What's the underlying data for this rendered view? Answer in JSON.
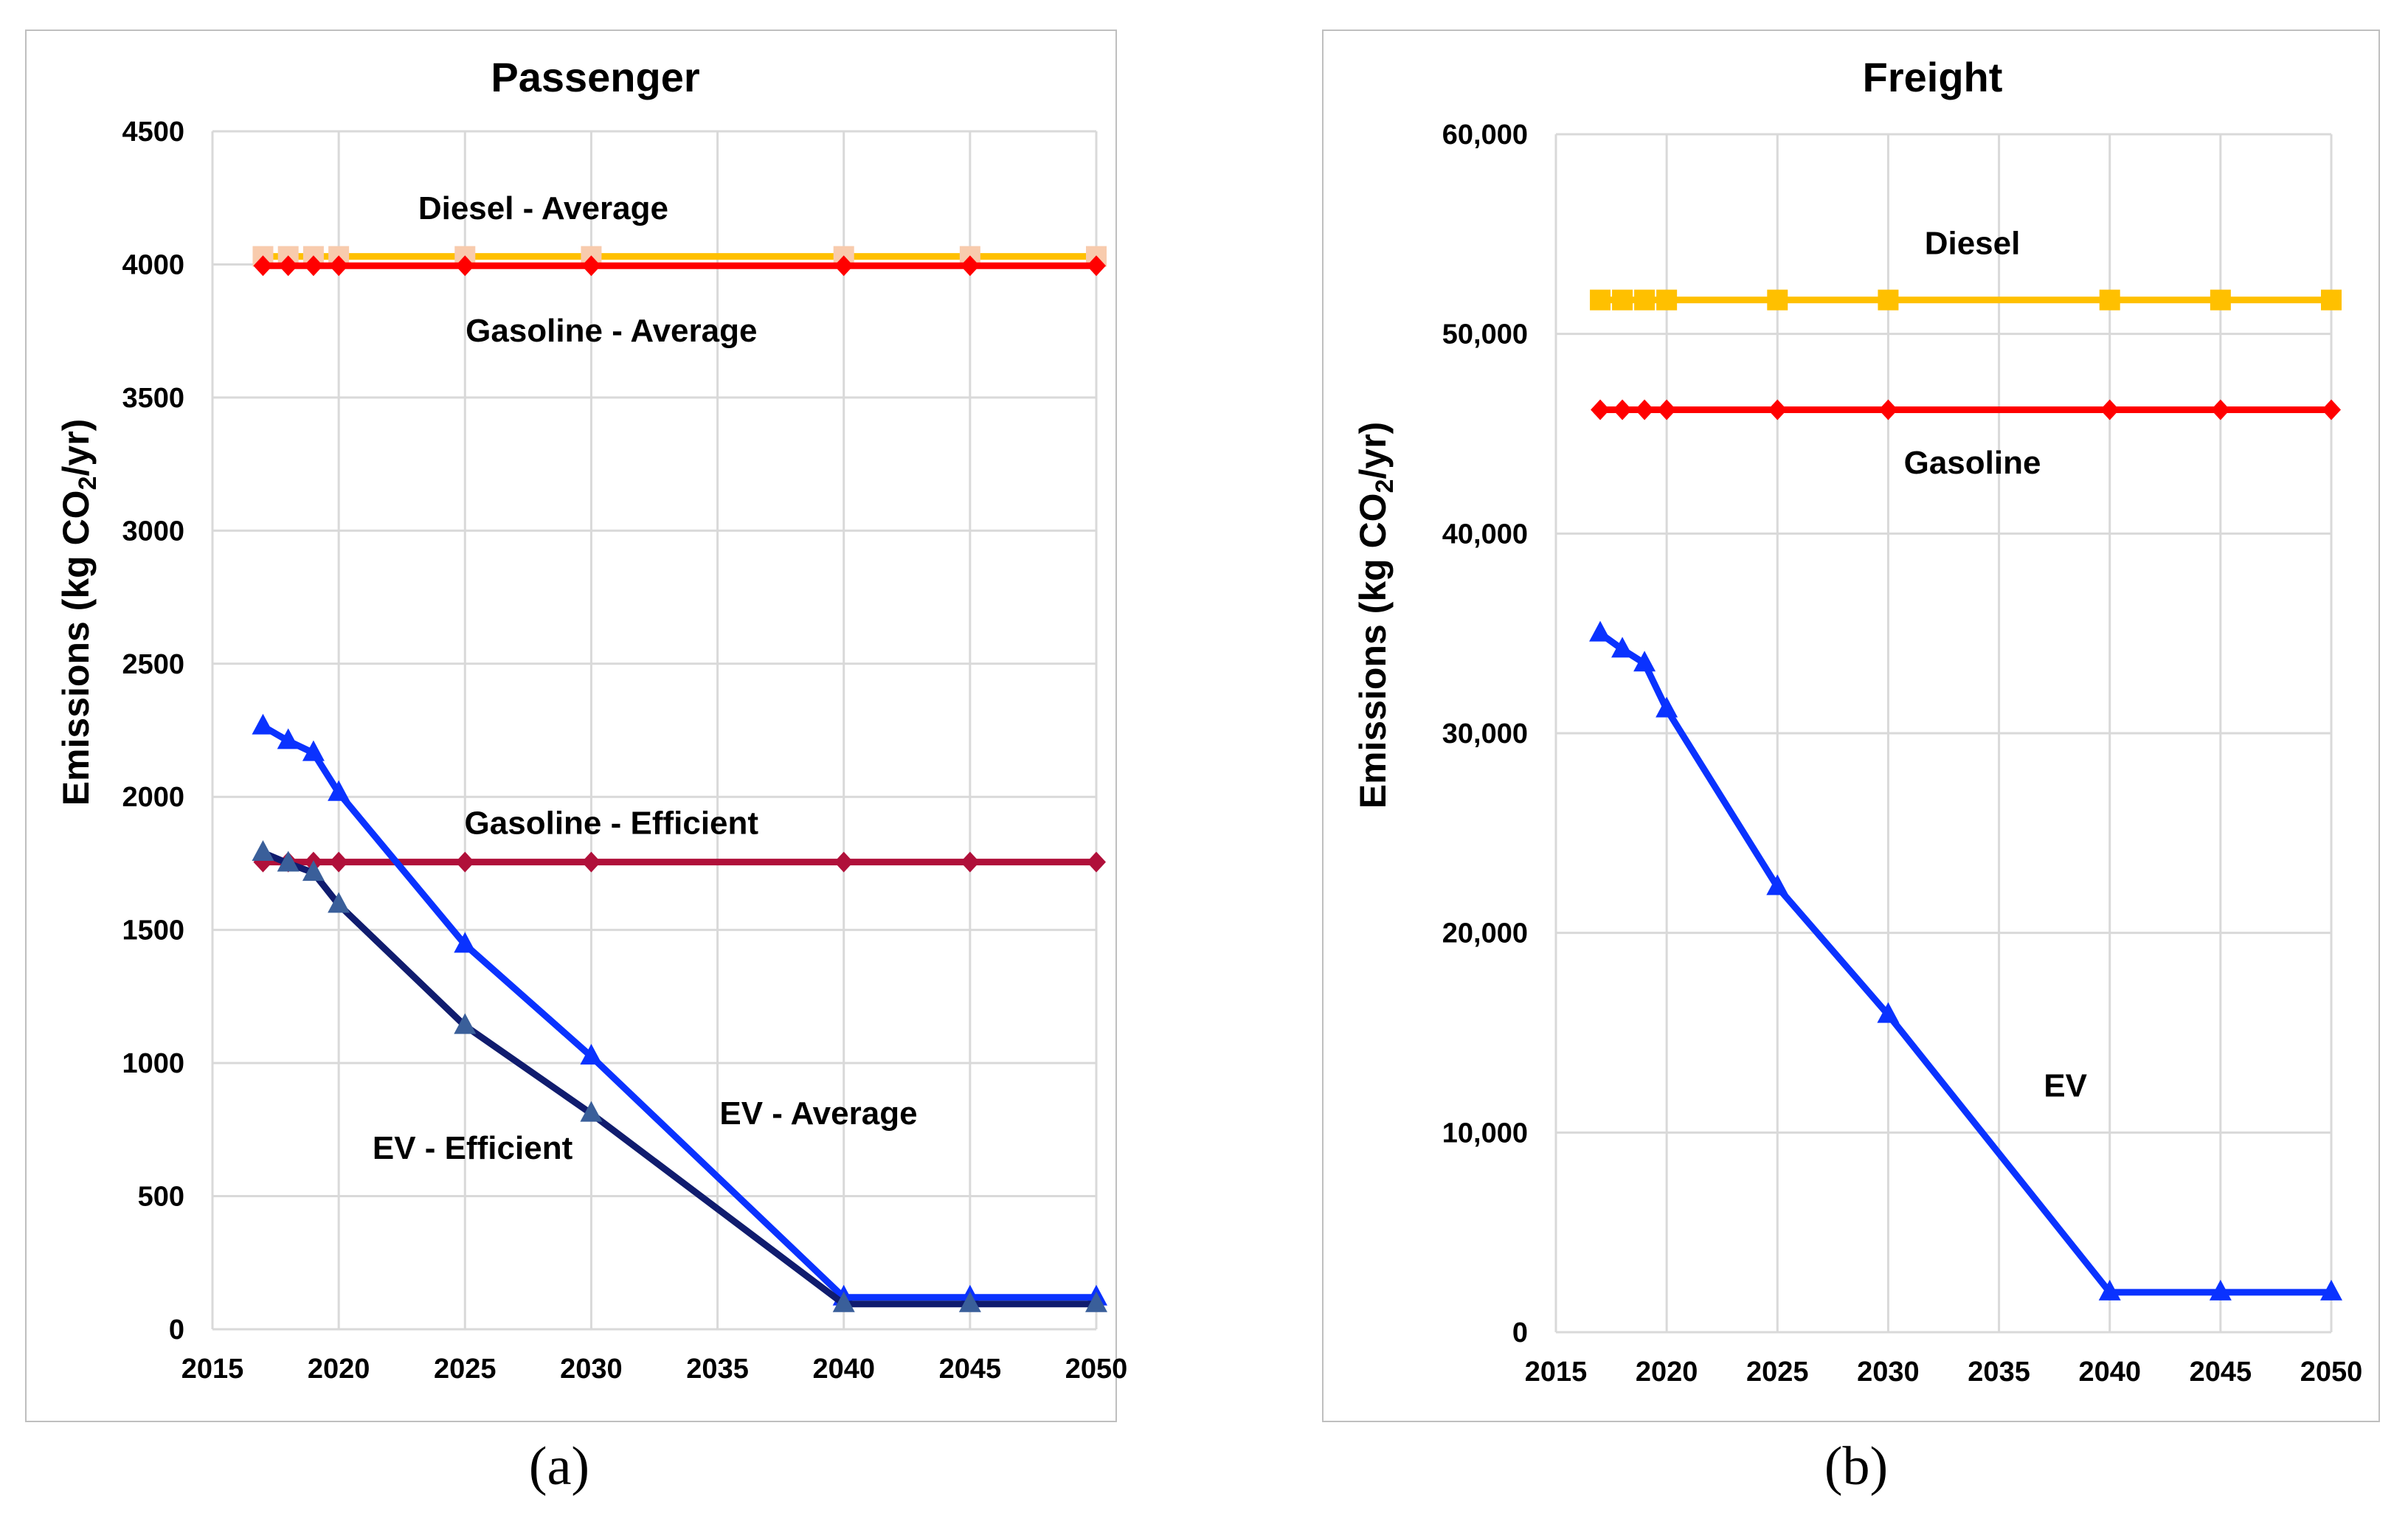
{
  "chart_data": [
    {
      "panel": "a",
      "type": "line",
      "title": "Passenger",
      "ylabel": "Emissions (kg CO2/yr)",
      "ylabel_parts": {
        "pre": "Emissions (kg CO",
        "sub": "2",
        "post": "/yr)"
      },
      "xlabel": "",
      "xlim": [
        2015,
        2050
      ],
      "ylim": [
        0,
        4500
      ],
      "x_ticks": [
        "2015",
        "2020",
        "2025",
        "2030",
        "2035",
        "2040",
        "2045",
        "2050"
      ],
      "y_ticks": [
        "0",
        "500",
        "1000",
        "1500",
        "2000",
        "2500",
        "3000",
        "3500",
        "4000",
        "4500"
      ],
      "grid": true,
      "series": [
        {
          "name": "Diesel - Average",
          "color": "#ffc000",
          "marker": "square",
          "marker_color": "#f8cbad",
          "x": [
            2017,
            2018,
            2019,
            2020,
            2025,
            2030,
            2040,
            2045,
            2050
          ],
          "y": [
            4030,
            4030,
            4030,
            4030,
            4030,
            4030,
            4030,
            4030,
            4030
          ]
        },
        {
          "name": "Gasoline - Average",
          "color": "#ff0000",
          "marker": "diamond",
          "marker_color": "#ff0000",
          "x": [
            2017,
            2018,
            2019,
            2020,
            2025,
            2030,
            2040,
            2045,
            2050
          ],
          "y": [
            3995,
            3995,
            3995,
            3995,
            3995,
            3995,
            3995,
            3995,
            3995
          ]
        },
        {
          "name": "Gasoline - Efficient",
          "color": "#b0103a",
          "marker": "diamond",
          "marker_color": "#b0103a",
          "x": [
            2017,
            2018,
            2019,
            2020,
            2025,
            2030,
            2040,
            2045,
            2050
          ],
          "y": [
            1755,
            1755,
            1755,
            1755,
            1755,
            1755,
            1755,
            1755,
            1755
          ]
        },
        {
          "name": "EV - Average",
          "color": "#0a32ff",
          "marker": "triangle",
          "marker_color": "#0a32ff",
          "x": [
            2017,
            2018,
            2019,
            2020,
            2025,
            2030,
            2040,
            2045,
            2050
          ],
          "y": [
            2265,
            2210,
            2165,
            2015,
            1445,
            1025,
            120,
            120,
            120
          ]
        },
        {
          "name": "EV - Efficient",
          "color": "#101c6e",
          "marker": "triangle",
          "marker_color": "#3a5f9a",
          "x": [
            2017,
            2018,
            2019,
            2020,
            2025,
            2030,
            2040,
            2045,
            2050
          ],
          "y": [
            1790,
            1750,
            1715,
            1595,
            1140,
            810,
            95,
            95,
            95
          ]
        }
      ],
      "annotations": [
        {
          "text": "Diesel - Average",
          "x": 2028.1,
          "y": 4170
        },
        {
          "text": "Gasoline - Average",
          "x": 2030.8,
          "y": 3710
        },
        {
          "text": "Gasoline - Efficient",
          "x": 2030.8,
          "y": 1860
        },
        {
          "text": "EV - Average",
          "x": 2039.0,
          "y": 770
        },
        {
          "text": "EV - Efficient",
          "x": 2025.3,
          "y": 640
        }
      ]
    },
    {
      "panel": "b",
      "type": "line",
      "title": "Freight",
      "ylabel": "Emissions (kg CO2/yr)",
      "ylabel_parts": {
        "pre": "Emissions (kg CO",
        "sub": "2",
        "post": "/yr)"
      },
      "xlabel": "",
      "xlim": [
        2015,
        2050
      ],
      "ylim": [
        0,
        60000
      ],
      "x_ticks": [
        "2015",
        "2020",
        "2025",
        "2030",
        "2035",
        "2040",
        "2045",
        "2050"
      ],
      "y_ticks": [
        "0",
        "10,000",
        "20,000",
        "30,000",
        "40,000",
        "50,000",
        "60,000"
      ],
      "grid": true,
      "series": [
        {
          "name": "Diesel",
          "color": "#ffc000",
          "marker": "square",
          "marker_color": "#ffc000",
          "x": [
            2017,
            2018,
            2019,
            2020,
            2025,
            2030,
            2040,
            2045,
            2050
          ],
          "y": [
            51700,
            51700,
            51700,
            51700,
            51700,
            51700,
            51700,
            51700,
            51700
          ]
        },
        {
          "name": "Gasoline",
          "color": "#ff0000",
          "marker": "diamond",
          "marker_color": "#ff0000",
          "x": [
            2017,
            2018,
            2019,
            2020,
            2025,
            2030,
            2040,
            2045,
            2050
          ],
          "y": [
            46200,
            46200,
            46200,
            46200,
            46200,
            46200,
            46200,
            46200,
            46200
          ]
        },
        {
          "name": "EV",
          "color": "#0a32ff",
          "marker": "triangle",
          "marker_color": "#0a32ff",
          "x": [
            2017,
            2018,
            2019,
            2020,
            2025,
            2030,
            2040,
            2045,
            2050
          ],
          "y": [
            35000,
            34200,
            33500,
            31200,
            22300,
            15900,
            2000,
            2000,
            2000
          ]
        }
      ],
      "annotations": [
        {
          "text": "Diesel",
          "x": 2033.8,
          "y": 54000
        },
        {
          "text": "Gasoline",
          "x": 2033.8,
          "y": 43000
        },
        {
          "text": "EV",
          "x": 2038.0,
          "y": 11800
        }
      ]
    }
  ],
  "panel_labels": {
    "a": "(a)",
    "b": "(b)"
  }
}
